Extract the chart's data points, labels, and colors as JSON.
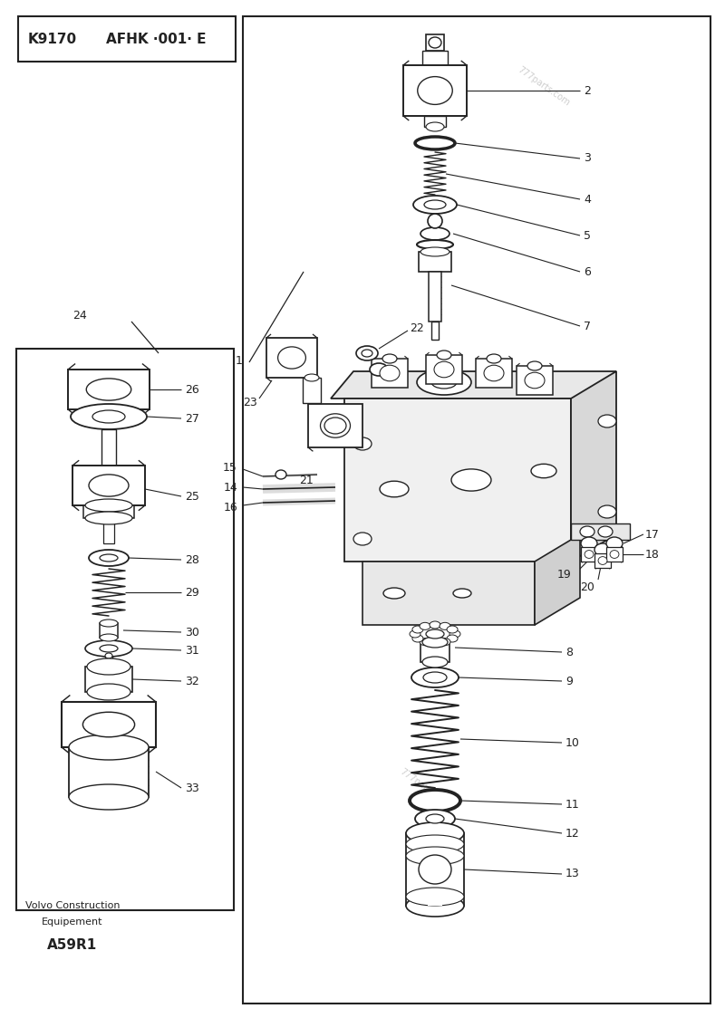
{
  "bg_color": "#ffffff",
  "line_color": "#222222",
  "title_box1": "K9170",
  "title_box2": "AFHK ·001· E",
  "watermark": "777parts.com",
  "footer_line1": "Volvo Construction",
  "footer_line2": "Equipement",
  "footer_code": "A59R1",
  "fig_width": 8.0,
  "fig_height": 11.24,
  "dpi": 100
}
